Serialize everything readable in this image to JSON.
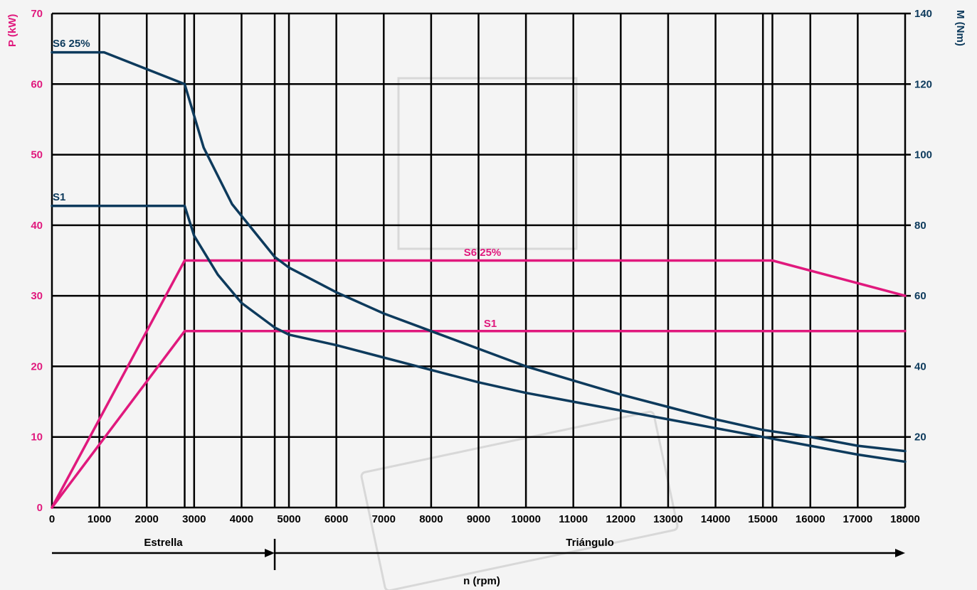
{
  "chart_data": {
    "type": "line",
    "xlabel": "n (rpm)",
    "y_left_label": "P (kW)",
    "y_right_label": "M (Nm)",
    "xlim": [
      0,
      18000
    ],
    "y_left_lim": [
      0,
      70
    ],
    "y_right_lim": [
      0,
      140
    ],
    "x_ticks": [
      0,
      1000,
      2000,
      3000,
      4000,
      5000,
      6000,
      7000,
      8000,
      9000,
      10000,
      11000,
      12000,
      13000,
      14000,
      15000,
      16000,
      17000,
      18000
    ],
    "y_left_ticks": [
      0,
      10,
      20,
      30,
      40,
      50,
      60,
      70
    ],
    "y_right_ticks": [
      20,
      40,
      60,
      80,
      100,
      120,
      140
    ],
    "extra_vertical_gridlines": [
      2800,
      4700,
      15200
    ],
    "grid": true,
    "colors": {
      "power": "#e0197d",
      "torque": "#0d3a5c",
      "grid": "#000000"
    },
    "series": [
      {
        "name": "S6 25%",
        "quantity": "P (kW)",
        "axis": "left",
        "color": "#e0197d",
        "x": [
          0,
          2800,
          15200,
          18000
        ],
        "y": [
          0,
          35,
          35,
          30
        ]
      },
      {
        "name": "S1",
        "quantity": "P (kW)",
        "axis": "left",
        "color": "#e0197d",
        "x": [
          0,
          2800,
          18000
        ],
        "y": [
          0,
          25,
          25
        ]
      },
      {
        "name": "S6 25%",
        "quantity": "M (Nm)",
        "axis": "right",
        "color": "#0d3a5c",
        "x": [
          0,
          1100,
          2800,
          3200,
          3800,
          4700,
          5000,
          6000,
          7000,
          8000,
          9000,
          10000,
          11000,
          12000,
          13000,
          14000,
          15000,
          16000,
          17000,
          18000
        ],
        "y": [
          129,
          129,
          120,
          102,
          86,
          71,
          68,
          61,
          55,
          50,
          45,
          40,
          36,
          32,
          28.5,
          25,
          22,
          20,
          17.5,
          16
        ]
      },
      {
        "name": "S1",
        "quantity": "M (Nm)",
        "axis": "right",
        "color": "#0d3a5c",
        "x": [
          0,
          2800,
          3000,
          3500,
          4000,
          4700,
          5000,
          6000,
          7000,
          8000,
          9000,
          10000,
          11000,
          12000,
          13000,
          14000,
          15000,
          16000,
          17000,
          18000
        ],
        "y": [
          85.5,
          85.5,
          77,
          66,
          58,
          51,
          49,
          46,
          42.5,
          39,
          35.5,
          32.5,
          30,
          27.5,
          25,
          22.5,
          20,
          17.5,
          15,
          13
        ]
      }
    ],
    "series_labels": [
      {
        "text": "S6 25%",
        "color": "#0d3a5c"
      },
      {
        "text": "S1",
        "color": "#0d3a5c"
      },
      {
        "text": "S6 25%",
        "color": "#e0197d"
      },
      {
        "text": "S1",
        "color": "#e0197d"
      }
    ],
    "connection_ranges": [
      {
        "label": "Estrella",
        "from": 0,
        "to": 4700
      },
      {
        "label": "Triángulo",
        "from": 4700,
        "to": 18000
      }
    ]
  }
}
